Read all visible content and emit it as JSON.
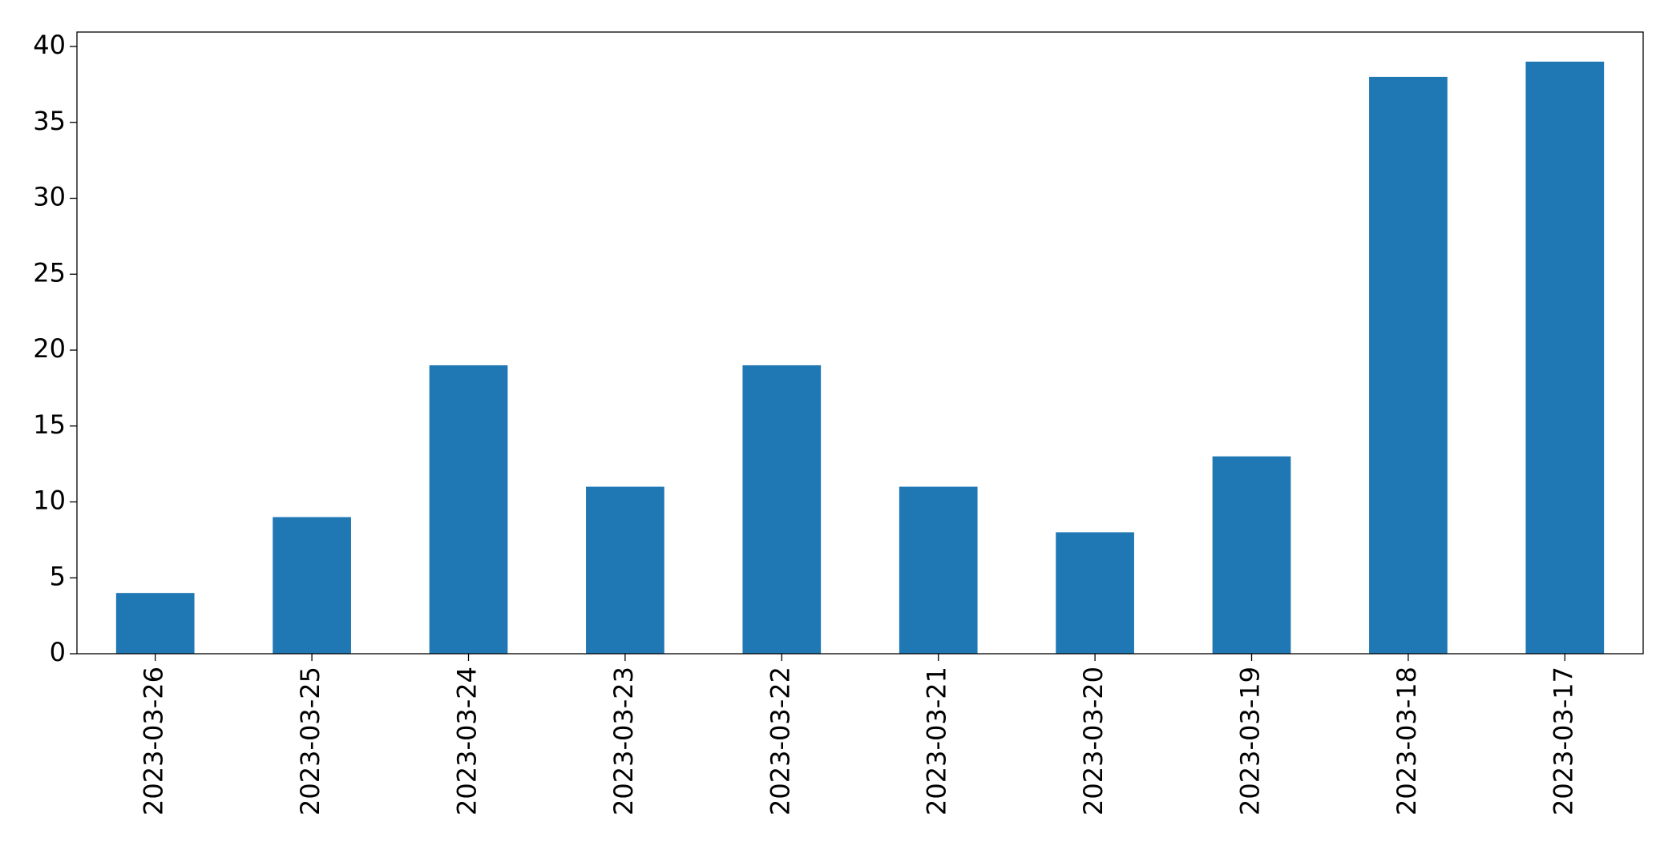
{
  "chart_data": {
    "type": "bar",
    "categories": [
      "2023-03-26",
      "2023-03-25",
      "2023-03-24",
      "2023-03-23",
      "2023-03-22",
      "2023-03-21",
      "2023-03-20",
      "2023-03-19",
      "2023-03-18",
      "2023-03-17"
    ],
    "values": [
      4,
      9,
      19,
      11,
      19,
      11,
      8,
      13,
      38,
      39
    ],
    "color": "#1f77b4",
    "ylim": [
      0,
      40.95
    ],
    "yticks": [
      0,
      5,
      10,
      15,
      20,
      25,
      30,
      35,
      40
    ],
    "grid": false
  }
}
